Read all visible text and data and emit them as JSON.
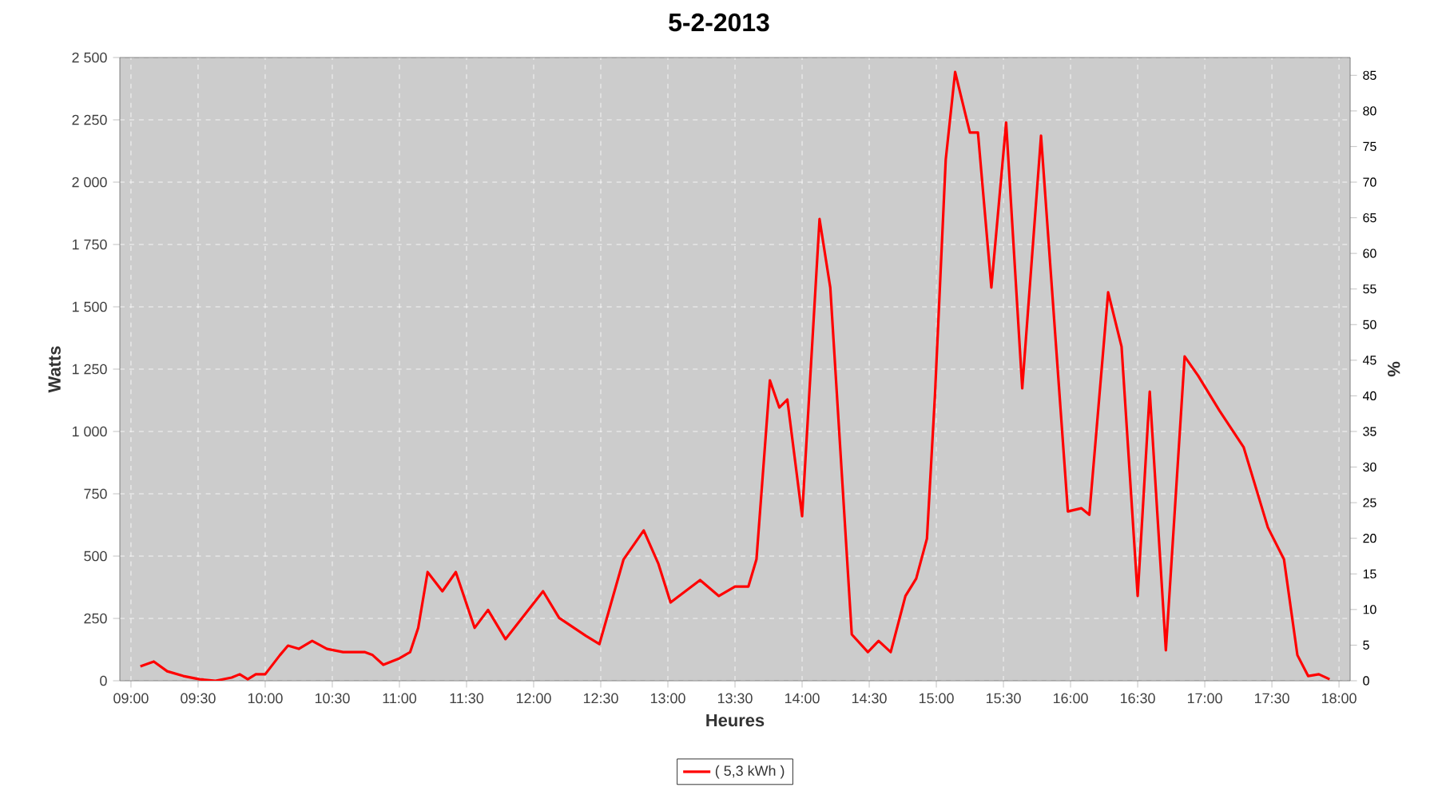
{
  "chart_data": {
    "type": "line",
    "title": "5-2-2013",
    "xlabel": "Heures",
    "ylabel": "Watts",
    "y2label": "%",
    "x": [
      9.07,
      9.17,
      9.27,
      9.39,
      9.51,
      9.63,
      9.75,
      9.81,
      9.87,
      9.93,
      10.0,
      10.11,
      10.17,
      10.25,
      10.35,
      10.46,
      10.58,
      10.74,
      10.8,
      10.88,
      11.0,
      11.08,
      11.14,
      11.21,
      11.32,
      11.42,
      11.56,
      11.66,
      11.79,
      12.07,
      12.19,
      12.39,
      12.49,
      12.67,
      12.82,
      12.93,
      13.02,
      13.24,
      13.38,
      13.5,
      13.6,
      13.66,
      13.76,
      13.83,
      13.89,
      14.0,
      14.13,
      14.21,
      14.37,
      14.49,
      14.57,
      14.66,
      14.77,
      14.85,
      14.93,
      14.99,
      15.07,
      15.14,
      15.25,
      15.31,
      15.41,
      15.52,
      15.64,
      15.78,
      15.98,
      16.08,
      16.14,
      16.28,
      16.38,
      16.5,
      16.59,
      16.71,
      16.85,
      16.95,
      17.11,
      17.29,
      17.47,
      17.59,
      17.69,
      17.77,
      17.85,
      17.93
    ],
    "series": [
      {
        "name": "( 5,3 kWh )",
        "color": "#ff0000",
        "values": [
          58,
          77,
          38,
          19,
          6,
          0,
          13,
          26,
          6,
          26,
          26,
          103,
          141,
          128,
          160,
          128,
          115,
          115,
          103,
          64,
          90,
          115,
          212,
          436,
          359,
          436,
          212,
          284,
          167,
          359,
          252,
          180,
          147,
          487,
          603,
          468,
          314,
          404,
          340,
          378,
          378,
          487,
          1205,
          1096,
          1128,
          660,
          1852,
          1577,
          186,
          115,
          160,
          115,
          340,
          410,
          570,
          1147,
          2090,
          2442,
          2199,
          2199,
          1577,
          2239,
          1173,
          2186,
          679,
          692,
          666,
          1558,
          1340,
          340,
          1160,
          122,
          1301,
          1224,
          1083,
          936,
          615,
          487,
          103,
          19,
          26,
          6
        ]
      }
    ],
    "xlim": [
      8.917,
      18.083
    ],
    "xticks": [
      {
        "value": 9,
        "label": "09:00"
      },
      {
        "value": 9.5,
        "label": "09:30"
      },
      {
        "value": 10,
        "label": "10:00"
      },
      {
        "value": 10.5,
        "label": "10:30"
      },
      {
        "value": 11,
        "label": "11:00"
      },
      {
        "value": 11.5,
        "label": "11:30"
      },
      {
        "value": 12,
        "label": "12:00"
      },
      {
        "value": 12.5,
        "label": "12:30"
      },
      {
        "value": 13,
        "label": "13:00"
      },
      {
        "value": 13.5,
        "label": "13:30"
      },
      {
        "value": 14,
        "label": "14:00"
      },
      {
        "value": 14.5,
        "label": "14:30"
      },
      {
        "value": 15,
        "label": "15:00"
      },
      {
        "value": 15.5,
        "label": "15:30"
      },
      {
        "value": 16,
        "label": "16:00"
      },
      {
        "value": 16.5,
        "label": "16:30"
      },
      {
        "value": 17,
        "label": "17:00"
      },
      {
        "value": 17.5,
        "label": "17:30"
      },
      {
        "value": 18,
        "label": "18:00"
      }
    ],
    "ylim": [
      0,
      2500
    ],
    "yticks": [
      0,
      250,
      500,
      750,
      {
        "value": 1000,
        "label": "1 000"
      },
      {
        "value": 1250,
        "label": "1 250"
      },
      {
        "value": 1500,
        "label": "1 500"
      },
      {
        "value": 1750,
        "label": "1 750"
      },
      {
        "value": 2000,
        "label": "2 000"
      },
      {
        "value": 2250,
        "label": "2 250"
      },
      {
        "value": 2500,
        "label": "2 500"
      }
    ],
    "y2lim": [
      0,
      87.5
    ],
    "y2ticks": [
      0,
      5,
      10,
      15,
      20,
      25,
      30,
      35,
      40,
      45,
      50,
      55,
      60,
      65,
      70,
      75,
      80,
      85
    ],
    "grid": true,
    "legend": "bottom",
    "marker": "none",
    "line_style": "solid"
  }
}
